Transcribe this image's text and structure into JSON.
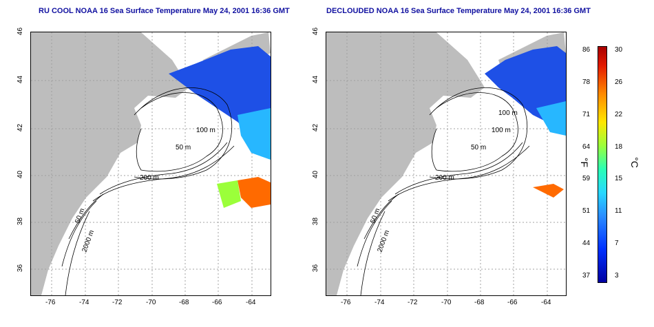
{
  "titles": {
    "left": "RU COOL NOAA 16 Sea Surface Temperature May 24, 2001 16:36 GMT",
    "right": "DECLOUDED NOAA 16 Sea Surface Temperature May 24, 2001 16:36 GMT"
  },
  "axes": {
    "x_ticks": [
      "-76",
      "-74",
      "-72",
      "-70",
      "-68",
      "-66",
      "-64"
    ],
    "y_ticks": [
      "46",
      "44",
      "42",
      "40",
      "38",
      "36"
    ]
  },
  "contour_labels": [
    "50 m",
    "100 m",
    "200 m",
    "2000 m"
  ],
  "colorbar": {
    "fahrenheit_ticks": [
      "86",
      "78",
      "71",
      "64",
      "59",
      "51",
      "44",
      "37"
    ],
    "celsius_ticks": [
      "30",
      "26",
      "22",
      "18",
      "15",
      "11",
      "7",
      "3"
    ],
    "unit_f": "°F",
    "unit_c": "°C"
  },
  "colors": {
    "land": "#bdbdbd",
    "title": "#1010a0",
    "grid": "#a0a0a0",
    "cold": "#1e50e6",
    "warm": "#ff6a00"
  }
}
